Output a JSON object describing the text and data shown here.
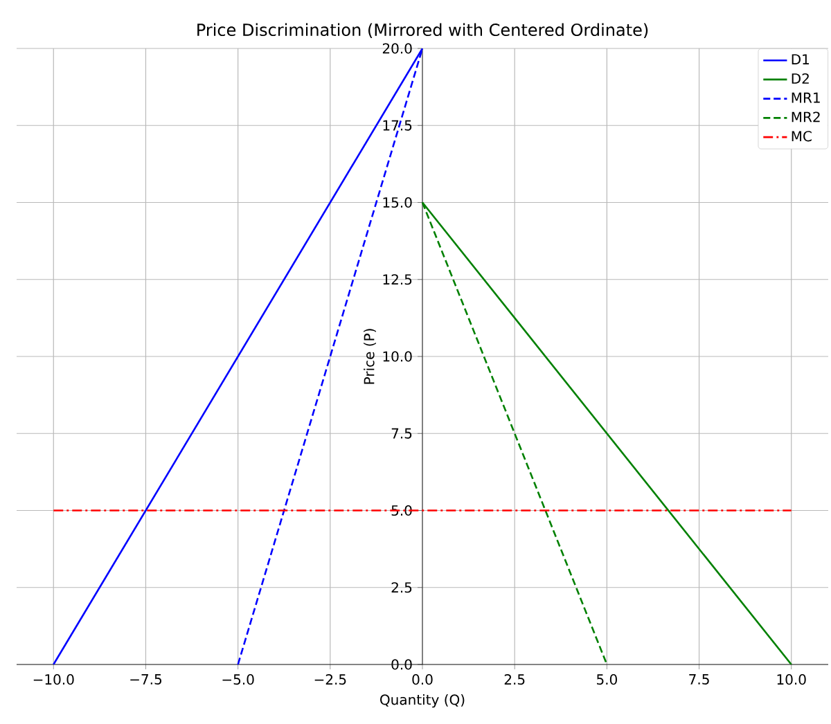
{
  "chart_data": {
    "type": "line",
    "title": "Price Discrimination (Mirrored with Centered Ordinate)",
    "xlabel": "Quantity (Q)",
    "ylabel": "Price (P)",
    "xlim": [
      -11,
      11
    ],
    "ylim": [
      0,
      20
    ],
    "xticks": [
      {
        "value": -10,
        "label": "−10.0"
      },
      {
        "value": -7.5,
        "label": "−7.5"
      },
      {
        "value": -5,
        "label": "−5.0"
      },
      {
        "value": -2.5,
        "label": "−2.5"
      },
      {
        "value": 0,
        "label": "0.0"
      },
      {
        "value": 2.5,
        "label": "2.5"
      },
      {
        "value": 5,
        "label": "5.0"
      },
      {
        "value": 7.5,
        "label": "7.5"
      },
      {
        "value": 10,
        "label": "10.0"
      }
    ],
    "yticks": [
      {
        "value": 0,
        "label": "0.0"
      },
      {
        "value": 2.5,
        "label": "2.5"
      },
      {
        "value": 5,
        "label": "5.0"
      },
      {
        "value": 7.5,
        "label": "7.5"
      },
      {
        "value": 10,
        "label": "10.0"
      },
      {
        "value": 12.5,
        "label": "12.5"
      },
      {
        "value": 15,
        "label": "15.0"
      },
      {
        "value": 17.5,
        "label": "17.5"
      },
      {
        "value": 20,
        "label": "20.0"
      }
    ],
    "grid": true,
    "legend": "top right",
    "marker": "none",
    "series": [
      {
        "name": "D1",
        "color": "#0000ff",
        "line_style": "solid",
        "x": [
          -10,
          0
        ],
        "values": [
          0,
          20
        ]
      },
      {
        "name": "D2",
        "color": "#008000",
        "line_style": "solid",
        "x": [
          0,
          10
        ],
        "values": [
          15,
          0
        ]
      },
      {
        "name": "MR1",
        "color": "#0000ff",
        "line_style": "dashed",
        "x": [
          -5,
          0
        ],
        "values": [
          0,
          20
        ]
      },
      {
        "name": "MR2",
        "color": "#008000",
        "line_style": "dashed",
        "x": [
          0,
          5
        ],
        "values": [
          15,
          0
        ]
      },
      {
        "name": "MC",
        "color": "#ff0000",
        "line_style": "dashdot",
        "x": [
          -10,
          10
        ],
        "values": [
          5,
          5
        ]
      }
    ]
  }
}
